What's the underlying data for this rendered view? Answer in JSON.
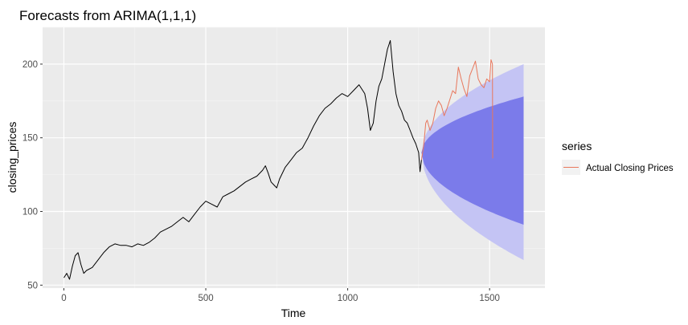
{
  "chart_data": {
    "type": "line",
    "title": "Forecasts from ARIMA(1,1,1)",
    "xlabel": "Time",
    "ylabel": "closing_prices",
    "xlim": [
      -75,
      1695
    ],
    "ylim": [
      48,
      225
    ],
    "x_ticks": [
      0,
      500,
      1000,
      1500
    ],
    "y_ticks": [
      50,
      100,
      150,
      200
    ],
    "grid": true,
    "legend": {
      "title": "series",
      "position": "right",
      "entries": [
        "Actual Closing Prices"
      ]
    },
    "series": [
      {
        "name": "",
        "color": "#000000",
        "points": [
          [
            0,
            55
          ],
          [
            10,
            58
          ],
          [
            20,
            54
          ],
          [
            30,
            63
          ],
          [
            40,
            70
          ],
          [
            50,
            72
          ],
          [
            60,
            64
          ],
          [
            70,
            58
          ],
          [
            80,
            60
          ],
          [
            100,
            62
          ],
          [
            120,
            67
          ],
          [
            140,
            72
          ],
          [
            160,
            76
          ],
          [
            180,
            78
          ],
          [
            200,
            77
          ],
          [
            220,
            77
          ],
          [
            240,
            76
          ],
          [
            260,
            78
          ],
          [
            280,
            77
          ],
          [
            300,
            79
          ],
          [
            320,
            82
          ],
          [
            340,
            86
          ],
          [
            360,
            88
          ],
          [
            380,
            90
          ],
          [
            400,
            93
          ],
          [
            420,
            96
          ],
          [
            440,
            93
          ],
          [
            460,
            98
          ],
          [
            480,
            103
          ],
          [
            500,
            107
          ],
          [
            520,
            105
          ],
          [
            540,
            103
          ],
          [
            560,
            110
          ],
          [
            580,
            112
          ],
          [
            600,
            114
          ],
          [
            620,
            117
          ],
          [
            640,
            120
          ],
          [
            660,
            122
          ],
          [
            680,
            124
          ],
          [
            700,
            128
          ],
          [
            710,
            131
          ],
          [
            720,
            126
          ],
          [
            730,
            120
          ],
          [
            740,
            118
          ],
          [
            750,
            116
          ],
          [
            760,
            122
          ],
          [
            780,
            130
          ],
          [
            800,
            135
          ],
          [
            820,
            140
          ],
          [
            840,
            143
          ],
          [
            860,
            150
          ],
          [
            880,
            158
          ],
          [
            900,
            165
          ],
          [
            920,
            170
          ],
          [
            940,
            173
          ],
          [
            960,
            177
          ],
          [
            980,
            180
          ],
          [
            1000,
            178
          ],
          [
            1020,
            182
          ],
          [
            1040,
            186
          ],
          [
            1060,
            180
          ],
          [
            1070,
            170
          ],
          [
            1080,
            155
          ],
          [
            1090,
            160
          ],
          [
            1100,
            175
          ],
          [
            1110,
            185
          ],
          [
            1120,
            190
          ],
          [
            1130,
            200
          ],
          [
            1140,
            210
          ],
          [
            1150,
            216
          ],
          [
            1160,
            195
          ],
          [
            1170,
            180
          ],
          [
            1180,
            172
          ],
          [
            1190,
            168
          ],
          [
            1200,
            162
          ],
          [
            1210,
            160
          ],
          [
            1220,
            155
          ],
          [
            1230,
            150
          ],
          [
            1240,
            146
          ],
          [
            1250,
            140
          ],
          [
            1255,
            127
          ],
          [
            1260,
            135
          ]
        ]
      },
      {
        "name": "Actual Closing Prices",
        "color": "#e8775c",
        "points": [
          [
            1260,
            135
          ],
          [
            1268,
            145
          ],
          [
            1275,
            160
          ],
          [
            1280,
            162
          ],
          [
            1290,
            155
          ],
          [
            1300,
            160
          ],
          [
            1310,
            170
          ],
          [
            1320,
            175
          ],
          [
            1330,
            172
          ],
          [
            1340,
            165
          ],
          [
            1350,
            170
          ],
          [
            1360,
            176
          ],
          [
            1370,
            182
          ],
          [
            1380,
            180
          ],
          [
            1390,
            198
          ],
          [
            1400,
            190
          ],
          [
            1410,
            183
          ],
          [
            1420,
            178
          ],
          [
            1430,
            192
          ],
          [
            1440,
            197
          ],
          [
            1450,
            202
          ],
          [
            1460,
            190
          ],
          [
            1470,
            186
          ],
          [
            1480,
            184
          ],
          [
            1490,
            190
          ],
          [
            1500,
            188
          ],
          [
            1505,
            203
          ],
          [
            1510,
            200
          ],
          [
            1511,
            136
          ]
        ]
      }
    ],
    "forecast": {
      "x": [
        1260,
        1620
      ],
      "point": 140,
      "band_80": {
        "color": "#7b7bea",
        "upper_end": 178,
        "lower_end": 91
      },
      "band_95": {
        "color": "#c4c4f4",
        "upper_end": 200,
        "lower_end": 67
      }
    }
  }
}
